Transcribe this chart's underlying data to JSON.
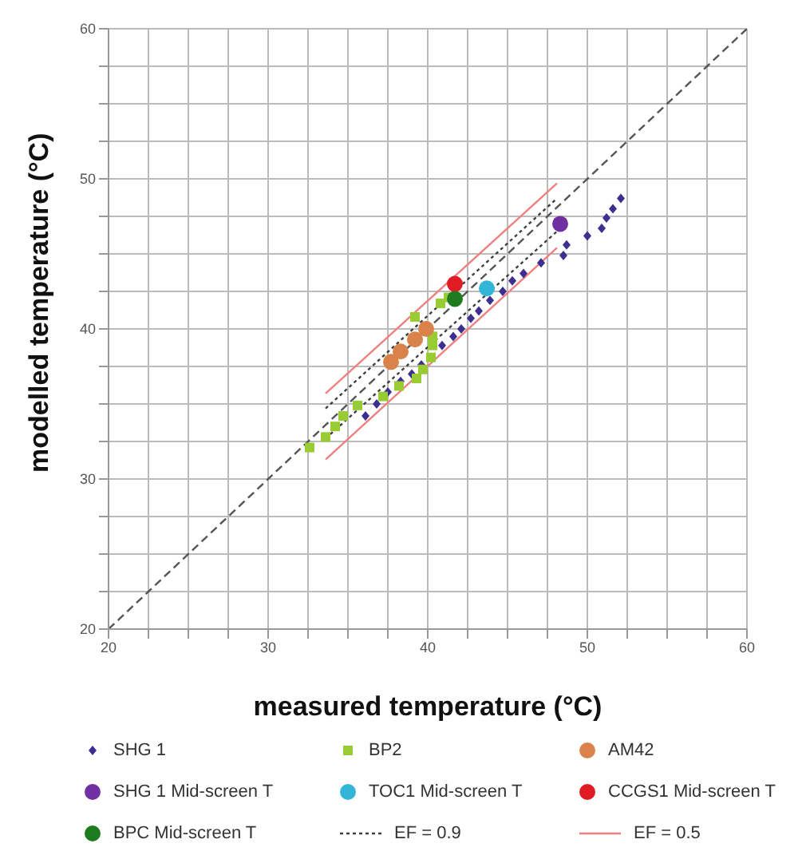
{
  "chart_data": {
    "type": "scatter",
    "xlabel": "measured temperature (°C)",
    "ylabel": "modelled temperature (°C)",
    "xlim": [
      20,
      60
    ],
    "ylim": [
      20,
      60
    ],
    "xticks": [
      20,
      {
        "value": 22.5,
        "label": null
      },
      {
        "value": 25,
        "label": null
      },
      {
        "value": 27.5,
        "label": null
      },
      30,
      {
        "value": 32.5,
        "label": null
      },
      {
        "value": 35,
        "label": null
      },
      {
        "value": 37.5,
        "label": null
      },
      40,
      {
        "value": 42.5,
        "label": null
      },
      {
        "value": 45,
        "label": null
      },
      {
        "value": 47.5,
        "label": null
      },
      50,
      {
        "value": 52.5,
        "label": null
      },
      {
        "value": 55,
        "label": null
      },
      {
        "value": 57.5,
        "label": null
      },
      60
    ],
    "yticks": [
      20,
      {
        "value": 22.5,
        "label": null
      },
      {
        "value": 25,
        "label": null
      },
      {
        "value": 27.5,
        "label": null
      },
      30,
      {
        "value": 32.5,
        "label": null
      },
      {
        "value": 35,
        "label": null
      },
      {
        "value": 37.5,
        "label": null
      },
      40,
      {
        "value": 42.5,
        "label": null
      },
      {
        "value": 45,
        "label": null
      },
      {
        "value": 47.5,
        "label": null
      },
      50,
      {
        "value": 52.5,
        "label": null
      },
      {
        "value": 55,
        "label": null
      },
      {
        "value": 57.5,
        "label": null
      },
      60
    ],
    "grid": true,
    "legend": "bottom",
    "series": [
      {
        "type": "line",
        "color": "#555555",
        "line_style": "dashed",
        "marker": "none",
        "x": [
          20,
          60
        ],
        "values": [
          20,
          60
        ]
      },
      {
        "name": "SHG 1",
        "color": "#3b2f8f",
        "marker": "diamond",
        "x": [
          36.1,
          36.8,
          37.5,
          38.3,
          39.0,
          39.6,
          40.9,
          41.6,
          42.1,
          42.7,
          43.2,
          43.9,
          44.7,
          45.3,
          46.0,
          47.1,
          48.5,
          48.7,
          50.0,
          50.9,
          51.2,
          51.6,
          52.1
        ],
        "values": [
          34.2,
          35.0,
          35.8,
          36.5,
          37.0,
          37.6,
          38.9,
          39.5,
          40.0,
          40.7,
          41.2,
          41.9,
          42.5,
          43.2,
          43.7,
          44.4,
          44.9,
          45.6,
          46.2,
          46.7,
          47.4,
          48.0,
          48.7
        ]
      },
      {
        "name": "BP2",
        "color": "#99cc33",
        "marker": "square",
        "x": [
          32.6,
          33.6,
          34.2,
          34.7,
          35.6,
          37.2,
          38.2,
          39.3,
          39.7,
          40.2,
          40.3,
          40.3,
          39.2,
          40.8,
          41.3
        ],
        "values": [
          32.1,
          32.8,
          33.5,
          34.2,
          34.9,
          35.5,
          36.2,
          36.7,
          37.3,
          38.1,
          38.9,
          39.5,
          40.8,
          41.7,
          42.1
        ]
      },
      {
        "name": "AM42",
        "color": "#d9834a",
        "marker": "circle",
        "x": [
          37.7,
          38.3,
          39.2,
          39.9
        ],
        "values": [
          37.8,
          38.5,
          39.3,
          40.0
        ]
      },
      {
        "name": "SHG 1 Mid-screen T",
        "color": "#7030a0",
        "marker": "circle",
        "x": [
          48.3
        ],
        "values": [
          47.0
        ]
      },
      {
        "name": "TOC1 Mid-screen T",
        "color": "#33b5d8",
        "marker": "circle",
        "x": [
          43.7
        ],
        "values": [
          42.7
        ]
      },
      {
        "name": "CCGS1 Mid-screen T",
        "color": "#e01b24",
        "marker": "circle",
        "x": [
          41.7
        ],
        "values": [
          43.0
        ]
      },
      {
        "name": "BPC Mid-screen T",
        "color": "#1e7b1e",
        "marker": "circle",
        "x": [
          41.7
        ],
        "values": [
          42.0
        ]
      },
      {
        "name": "EF = 0.9",
        "type": "line",
        "color": "#404040",
        "line_style": "dotted",
        "marker": "none",
        "x": [
          33.6,
          48.1
        ],
        "values": [
          34.7,
          48.7
        ]
      },
      {
        "type": "line",
        "color": "#404040",
        "line_style": "dotted",
        "marker": "none",
        "x": [
          33.6,
          48.1
        ],
        "values": [
          32.7,
          46.5
        ]
      },
      {
        "name": "EF = 0.5",
        "type": "line",
        "color": "#f08080",
        "line_style": "solid",
        "marker": "none",
        "x": [
          33.6,
          48.1
        ],
        "values": [
          35.7,
          49.7
        ]
      },
      {
        "type": "line",
        "color": "#f08080",
        "line_style": "solid",
        "marker": "none",
        "x": [
          33.6,
          48.1
        ],
        "values": [
          31.3,
          45.4
        ]
      }
    ]
  }
}
